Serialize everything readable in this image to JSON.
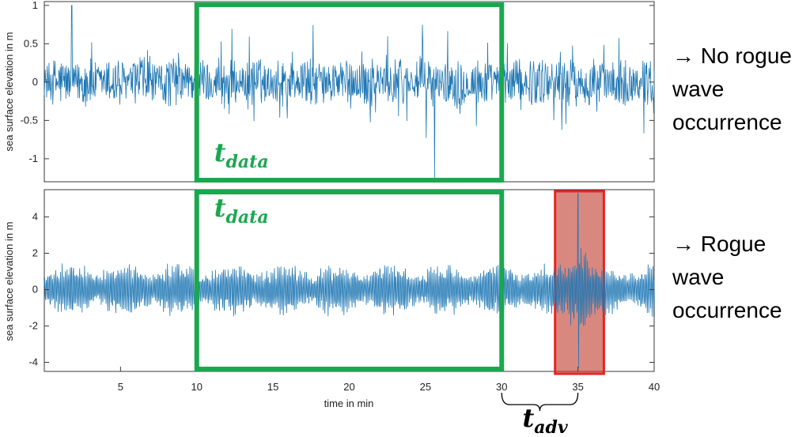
{
  "chart_data": [
    {
      "type": "line",
      "panel": "top",
      "title": "",
      "xlabel": "",
      "ylabel": "sea surface elevation in m",
      "xlim": [
        0,
        40
      ],
      "ylim": [
        -1.3,
        1.05
      ],
      "yticks": [
        "1",
        "0.5",
        "0",
        "-0.5",
        "-1"
      ],
      "ytick_values": [
        1,
        0.5,
        0,
        -0.5,
        -1
      ],
      "xticks": [],
      "series_color": "#1f77b4",
      "series_summary": {
        "typical_amplitude_m": 0.3,
        "max_m": 1.0,
        "min_m": -1.25
      },
      "highlight": {
        "label_main": "t",
        "label_sub": "data",
        "x_start": 10,
        "x_end": 30,
        "color": "#1aa84f"
      },
      "annotation": {
        "arrow": "→",
        "lines": [
          "No rogue",
          "wave",
          "occurrence"
        ]
      }
    },
    {
      "type": "line",
      "panel": "bottom",
      "title": "",
      "xlabel": "time in min",
      "ylabel": "sea surface elevation in m",
      "xlim": [
        0,
        40
      ],
      "ylim": [
        -4.5,
        5.5
      ],
      "yticks": [
        "4",
        "2",
        "0",
        "-2",
        "-4"
      ],
      "ytick_values": [
        4,
        2,
        0,
        -2,
        -4
      ],
      "xticks": [
        "5",
        "10",
        "15",
        "20",
        "25",
        "30",
        "35",
        "40"
      ],
      "xtick_values": [
        5,
        10,
        15,
        20,
        25,
        30,
        35,
        40
      ],
      "series_color": "#1f77b4",
      "series_summary": {
        "typical_amplitude_m": 1.2,
        "rogue_peak_m": 5.3,
        "rogue_trough_m": -4.3,
        "rogue_time_min": 35
      },
      "highlight": {
        "label_main": "t",
        "label_sub": "data",
        "x_start": 10,
        "x_end": 30,
        "color": "#1aa84f"
      },
      "rogue_window": {
        "x_start": 33.5,
        "x_end": 36.7,
        "color": "#d9534f"
      },
      "advance": {
        "label_main": "t",
        "label_sub": "adv",
        "x_start": 30,
        "x_end": 35
      },
      "annotation": {
        "arrow": "→",
        "lines": [
          "Rogue",
          "wave",
          "occurrence"
        ]
      }
    }
  ],
  "colors": {
    "series": "#1f77b4",
    "data_window": "#1aa84f",
    "rogue_fill": "#c0392b",
    "rogue_edge": "#e8231f",
    "axis": "#444444"
  }
}
